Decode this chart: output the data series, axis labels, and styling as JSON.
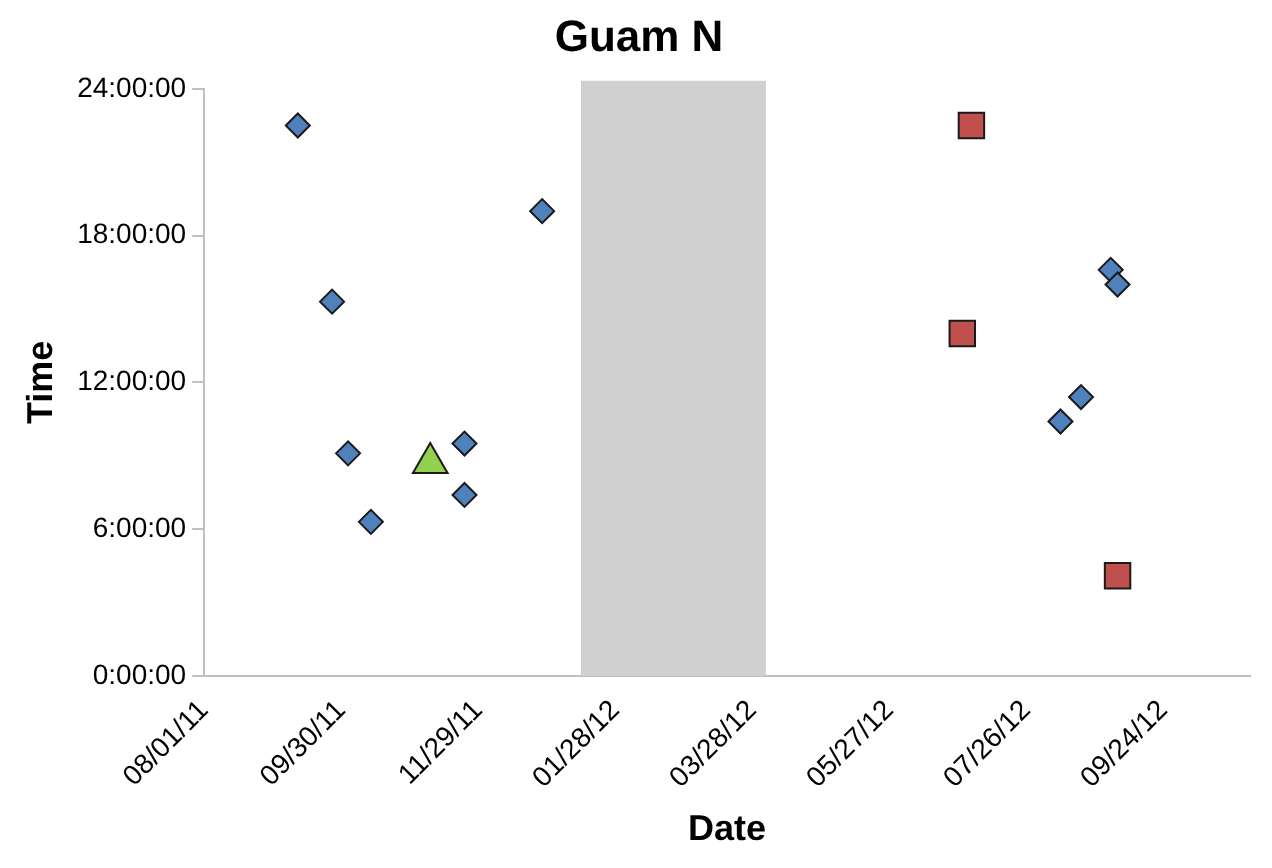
{
  "chart_data": {
    "type": "scatter",
    "title": "Guam N",
    "xlabel": "Date",
    "ylabel": "Time",
    "xlim": [
      "2011-08-01",
      "2012-11-01"
    ],
    "xticks": [
      {
        "value": "2011-08-01",
        "label": "08/01/11"
      },
      {
        "value": "2011-09-30",
        "label": "09/30/11"
      },
      {
        "value": "2011-11-29",
        "label": "11/29/11"
      },
      {
        "value": "2012-01-28",
        "label": "01/28/12"
      },
      {
        "value": "2012-03-28",
        "label": "03/28/12"
      },
      {
        "value": "2012-05-27",
        "label": "05/27/12"
      },
      {
        "value": "2012-07-26",
        "label": "07/26/12"
      },
      {
        "value": "2012-09-24",
        "label": "09/24/12"
      }
    ],
    "ylim": [
      0,
      24
    ],
    "yticks": [
      {
        "value": 0,
        "label": "0:00:00"
      },
      {
        "value": 6,
        "label": "6:00:00"
      },
      {
        "value": 12,
        "label": "12:00:00"
      },
      {
        "value": 18,
        "label": "18:00:00"
      },
      {
        "value": 24,
        "label": "24:00:00"
      }
    ],
    "grid": false,
    "legend": false,
    "bands": [
      {
        "axis": "x",
        "from": "2012-01-13",
        "to": "2012-04-03",
        "color": "#d0d0d0"
      }
    ],
    "series": [
      {
        "color": "#4f81bd",
        "marker": "diamond",
        "x": [
          "2011-09-11",
          "2011-09-26",
          "2011-10-03",
          "2011-10-13",
          "2011-11-23",
          "2011-11-23",
          "2011-12-27",
          "2012-09-01",
          "2012-09-04",
          "2012-08-19",
          "2012-08-10"
        ],
        "values": [
          22.5,
          15.3,
          9.1,
          6.3,
          9.5,
          7.4,
          19.0,
          16.6,
          16.0,
          11.4,
          10.4
        ]
      },
      {
        "color": "#92d050",
        "marker": "triangle",
        "x": [
          "2011-11-08"
        ],
        "values": [
          8.7
        ]
      },
      {
        "color": "#c0504d",
        "marker": "square",
        "x": [
          "2012-07-02",
          "2012-06-28",
          "2012-09-04"
        ],
        "values": [
          22.5,
          14.0,
          4.1
        ]
      }
    ]
  }
}
